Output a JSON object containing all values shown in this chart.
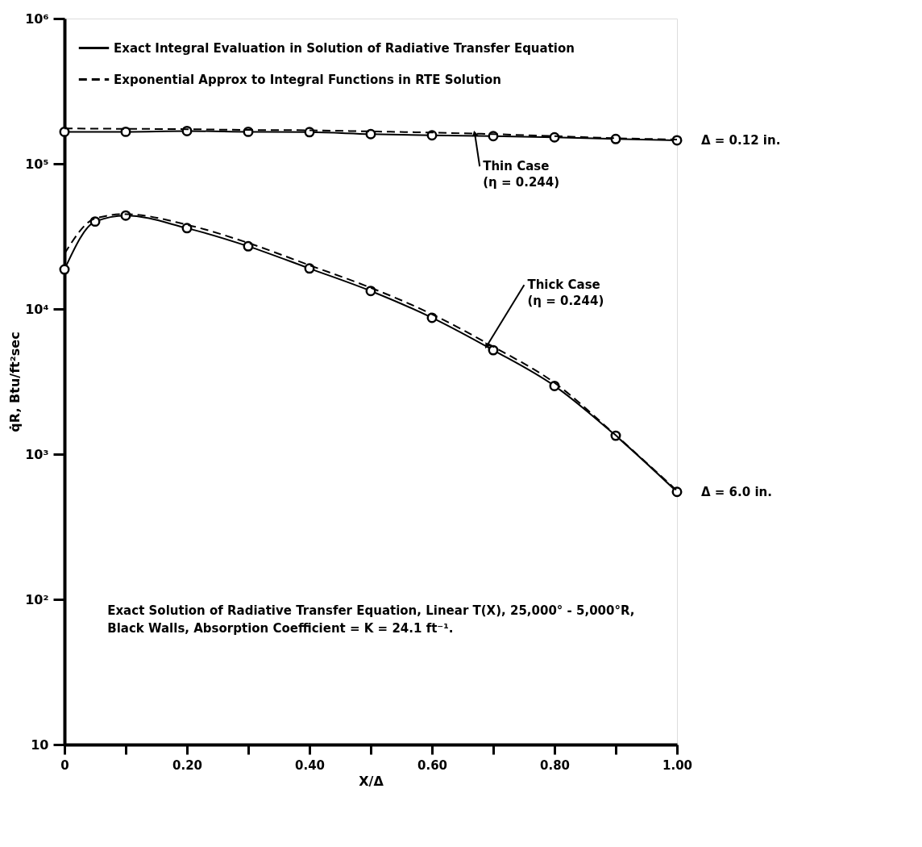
{
  "chart_data": {
    "type": "line",
    "xlabel": "X/Δ",
    "ylabel": "q̇R, Btu/ft²sec",
    "x": [
      0,
      0.05,
      0.1,
      0.2,
      0.3,
      0.4,
      0.5,
      0.6,
      0.7,
      0.8,
      0.9,
      1.0
    ],
    "series": [
      {
        "name": "Exact Integral Evaluation in Solution of Radiative Transfer Equation",
        "color": "#000000",
        "line_style": "solid",
        "marker": "circle",
        "x": [
          0,
          0.1,
          0.2,
          0.3,
          0.4,
          0.5,
          0.6,
          0.7,
          0.8,
          0.9,
          1.0
        ],
        "values": [
          166000,
          166000,
          168000,
          166000,
          165000,
          160000,
          157000,
          155000,
          152000,
          148000,
          145000
        ]
      },
      {
        "name": "Exponential Approx to Integral Functions in RTE Solution",
        "color": "#000000",
        "line_style": "dashed",
        "marker": "none",
        "x": [
          0,
          0.1,
          0.2,
          0.3,
          0.4,
          0.5,
          0.6,
          0.7,
          0.8,
          0.9,
          1.0
        ],
        "values": [
          175000,
          174000,
          173000,
          171000,
          170000,
          167000,
          164000,
          160000,
          155000,
          150000,
          147000
        ]
      },
      {
        "color": "#000000",
        "line_style": "solid",
        "marker": "circle",
        "values": [
          18700,
          40000,
          44000,
          36000,
          27000,
          19000,
          13300,
          8700,
          5200,
          2950,
          1340,
          550
        ]
      },
      {
        "color": "#000000",
        "line_style": "dashed",
        "marker": "none",
        "values": [
          24000,
          42000,
          45000,
          38000,
          28500,
          20000,
          14000,
          9200,
          5500,
          3100,
          1350,
          560
        ]
      }
    ],
    "xlim": [
      0,
      1.0
    ],
    "xticks": [
      0,
      {
        "value": 0.1,
        "label": null
      },
      {
        "value": 0.2,
        "label": "0.20"
      },
      {
        "value": 0.3,
        "label": null
      },
      {
        "value": 0.4,
        "label": "0.40"
      },
      {
        "value": 0.5,
        "label": null
      },
      {
        "value": 0.6,
        "label": "0.60"
      },
      {
        "value": 0.7,
        "label": null
      },
      {
        "value": 0.8,
        "label": "0.80"
      },
      {
        "value": 0.9,
        "label": null
      },
      {
        "value": 1.0,
        "label": "1.00"
      }
    ],
    "ylim": [
      10,
      1000000
    ],
    "yticks": [
      10,
      {
        "value": 100,
        "label": "10²"
      },
      {
        "value": 1000,
        "label": "10³"
      },
      {
        "value": 10000,
        "label": "10⁴"
      },
      {
        "value": 100000,
        "label": "10⁵"
      },
      {
        "value": 1000000,
        "label": "10⁶"
      }
    ],
    "log": "y",
    "grid": false,
    "legend": "top",
    "annotations": [
      {
        "text": "Δ = 0.12 in.",
        "x": 1.0,
        "y": 145000
      },
      {
        "text": "Δ = 6.0 in.",
        "x": 1.0,
        "y": 550
      },
      {
        "text": "Thin Case\n(η = 0.244)",
        "x": 0.67,
        "y": 160000
      },
      {
        "text": "Thick Case\n(η = 0.244)",
        "x": 0.69,
        "y": 5600
      },
      "Exact Solution of Radiative Transfer Equation, Linear T(X), 25,000° - 5,000°R,\nBlack Walls,  Absorption Coefficient = K = 24.1 ft⁻¹."
    ]
  }
}
